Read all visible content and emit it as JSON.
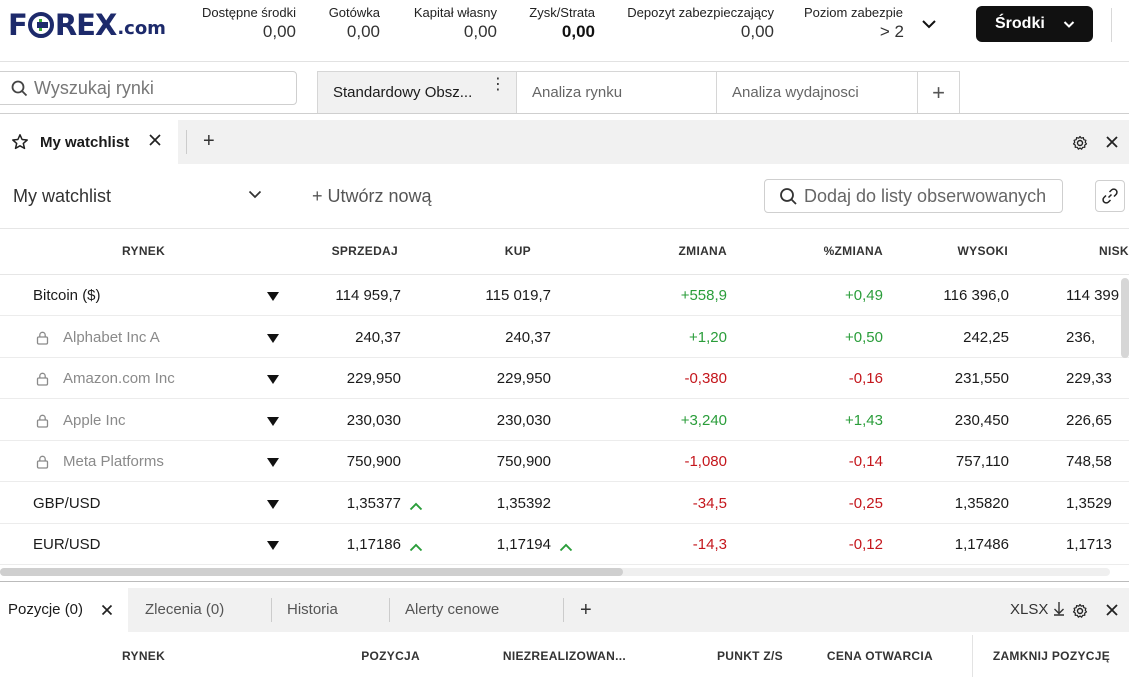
{
  "brand": {
    "logo_text": "F REX",
    "logo_pre": "F",
    "logo_post": "REX",
    "logo_suffix": ".com"
  },
  "header": {
    "metrics": [
      {
        "label": "Dostępne środki",
        "value": "0,00"
      },
      {
        "label": "Gotówka",
        "value": "0,00"
      },
      {
        "label": "Kapitał własny",
        "value": "0,00"
      },
      {
        "label": "Zysk/Strata",
        "value": "0,00"
      },
      {
        "label": "Depozyt zabezpieczający",
        "value": "0,00"
      },
      {
        "label": "Poziom zabezpie",
        "value": "> 2"
      }
    ],
    "funds_button": "Środki"
  },
  "search": {
    "placeholder": "Wyszukaj rynki"
  },
  "workspace_tabs": [
    {
      "label": "Standardowy Obsz..."
    },
    {
      "label": "Analiza rynku"
    },
    {
      "label": "Analiza wydajnosci"
    }
  ],
  "watchlist_panel": {
    "tab_label": "My watchlist",
    "selected_list": "My watchlist",
    "create_new": "+ Utwórz nową",
    "add_placeholder": "Dodaj do listy obserwowanych",
    "columns": [
      "RYNEK",
      "SPRZEDAJ",
      "KUP",
      "ZMIANA",
      "%ZMIANA",
      "WYSOKI",
      "NISK"
    ],
    "rows": [
      {
        "name": "Bitcoin ($)",
        "locked": false,
        "sell": "114 959,7",
        "sell_up": false,
        "buy": "115 019,7",
        "buy_up": false,
        "change": "+558,9",
        "pct": "+0,49",
        "dir": "pos",
        "high": "116 396,0",
        "low": "114 399"
      },
      {
        "name": "Alphabet Inc A",
        "locked": true,
        "sell": "240,37",
        "sell_up": false,
        "buy": "240,37",
        "buy_up": false,
        "change": "+1,20",
        "pct": "+0,50",
        "dir": "pos",
        "high": "242,25",
        "low": "236,"
      },
      {
        "name": "Amazon.com Inc",
        "locked": true,
        "sell": "229,950",
        "sell_up": false,
        "buy": "229,950",
        "buy_up": false,
        "change": "-0,380",
        "pct": "-0,16",
        "dir": "neg",
        "high": "231,550",
        "low": "229,33"
      },
      {
        "name": "Apple Inc",
        "locked": true,
        "sell": "230,030",
        "sell_up": false,
        "buy": "230,030",
        "buy_up": false,
        "change": "+3,240",
        "pct": "+1,43",
        "dir": "pos",
        "high": "230,450",
        "low": "226,65"
      },
      {
        "name": "Meta Platforms",
        "locked": true,
        "sell": "750,900",
        "sell_up": false,
        "buy": "750,900",
        "buy_up": false,
        "change": "-1,080",
        "pct": "-0,14",
        "dir": "neg",
        "high": "757,110",
        "low": "748,58"
      },
      {
        "name": "GBP/USD",
        "locked": false,
        "sell": "1,35377",
        "sell_up": true,
        "buy": "1,35392",
        "buy_up": false,
        "change": "-34,5",
        "pct": "-0,25",
        "dir": "neg",
        "high": "1,35820",
        "low": "1,3529"
      },
      {
        "name": "EUR/USD",
        "locked": false,
        "sell": "1,17186",
        "sell_up": true,
        "buy": "1,17194",
        "buy_up": true,
        "change": "-14,3",
        "pct": "-0,12",
        "dir": "neg",
        "high": "1,17486",
        "low": "1,1713"
      }
    ]
  },
  "bottom_panel": {
    "tabs": [
      "Pozycje (0)",
      "Zlecenia (0)",
      "Historia",
      "Alerty cenowe"
    ],
    "export_label": "XLSX",
    "columns": [
      "RYNEK",
      "POZYCJA",
      "NIEZREALIZOWAN...",
      "PUNKT Z/S",
      "CENA OTWARCIA",
      "ZAMKNIJ POZYCJĘ"
    ]
  },
  "colors": {
    "positive": "#2a9d3a",
    "negative": "#c4161c",
    "brand": "#1d2a6b",
    "accent": "#3aaa35"
  }
}
